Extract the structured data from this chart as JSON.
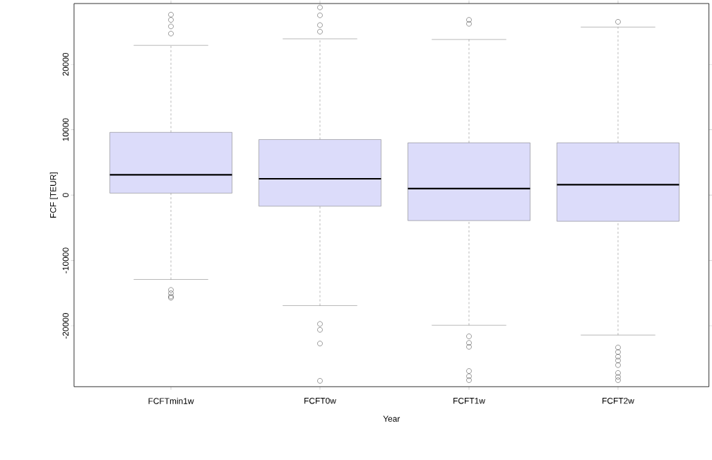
{
  "chart_data": {
    "type": "box",
    "xlabel": "Year",
    "ylabel": "FCF [TEUR]",
    "categories": [
      "FCFTmin1w",
      "FCFT0w",
      "FCFT1w",
      "FCFT2w"
    ],
    "color": "#dcdcfa",
    "boxes": [
      {
        "low": -12900,
        "q1": 300,
        "median": 3100,
        "q3": 9600,
        "high": 22900,
        "outliers": [
          27600,
          26800,
          25800,
          24700,
          -14500,
          -15000,
          -15500,
          -15700
        ]
      },
      {
        "low": -16900,
        "q1": -1700,
        "median": 2500,
        "q3": 8500,
        "high": 23900,
        "outliers": [
          28700,
          27500,
          26000,
          25000,
          -19700,
          -20600,
          -22700,
          -28400
        ]
      },
      {
        "low": -19900,
        "q1": -3900,
        "median": 1000,
        "q3": 8000,
        "high": 23800,
        "outliers": [
          26800,
          26200,
          -21600,
          -22600,
          -23200,
          -26900,
          -27700,
          -28300
        ]
      },
      {
        "low": -21400,
        "q1": -4000,
        "median": 1600,
        "q3": 8000,
        "high": 25700,
        "outliers": [
          26500,
          -23300,
          -24000,
          -24700,
          -25300,
          -26000,
          -27200,
          -27800,
          -28300
        ]
      }
    ],
    "ylim": [
      -29300,
      29300
    ],
    "yticks": [
      -20000,
      -10000,
      0,
      10000,
      20000
    ],
    "marker": "circle"
  }
}
